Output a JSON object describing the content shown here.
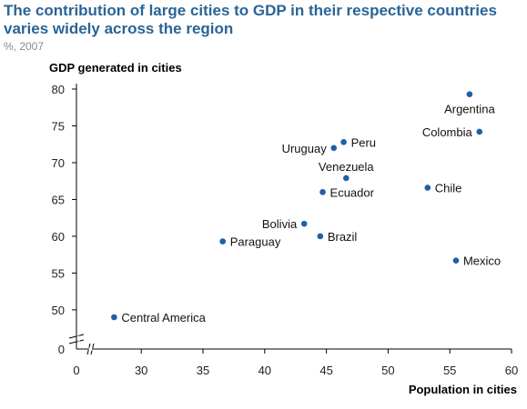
{
  "title": "The contribution of large cities to GDP in their respective countries varies widely across the region",
  "subtitle": "%, 2007",
  "colors": {
    "title": "#2a6496",
    "points": "#1f5fa8"
  },
  "chart_data": {
    "type": "scatter",
    "ylabel": "GDP generated in cities",
    "xlabel": "Population in cities",
    "x_ticks": [
      "0",
      "30",
      "35",
      "40",
      "45",
      "50",
      "55",
      "60"
    ],
    "y_ticks": [
      "0",
      "50",
      "55",
      "60",
      "65",
      "70",
      "75",
      "80"
    ],
    "axis_breaks": true,
    "xlim": [
      0,
      60
    ],
    "ylim": [
      0,
      80
    ],
    "grid": false,
    "points": [
      {
        "label": "Argentina",
        "x": 56.6,
        "y": 79.3,
        "label_pos": "below"
      },
      {
        "label": "Colombia",
        "x": 57.4,
        "y": 74.2,
        "label_pos": "left"
      },
      {
        "label": "Peru",
        "x": 46.4,
        "y": 72.8,
        "label_pos": "right"
      },
      {
        "label": "Uruguay",
        "x": 45.6,
        "y": 72.0,
        "label_pos": "left"
      },
      {
        "label": "Venezuela",
        "x": 46.6,
        "y": 67.9,
        "label_pos": "above"
      },
      {
        "label": "Chile",
        "x": 53.2,
        "y": 66.6,
        "label_pos": "right"
      },
      {
        "label": "Ecuador",
        "x": 44.7,
        "y": 66.0,
        "label_pos": "right"
      },
      {
        "label": "Bolivia",
        "x": 43.2,
        "y": 61.7,
        "label_pos": "left"
      },
      {
        "label": "Brazil",
        "x": 44.5,
        "y": 60.0,
        "label_pos": "right"
      },
      {
        "label": "Paraguay",
        "x": 36.6,
        "y": 59.3,
        "label_pos": "right"
      },
      {
        "label": "Mexico",
        "x": 55.5,
        "y": 56.7,
        "label_pos": "right"
      },
      {
        "label": "Central America",
        "x": 27.8,
        "y": 49.0,
        "label_pos": "right"
      }
    ]
  }
}
